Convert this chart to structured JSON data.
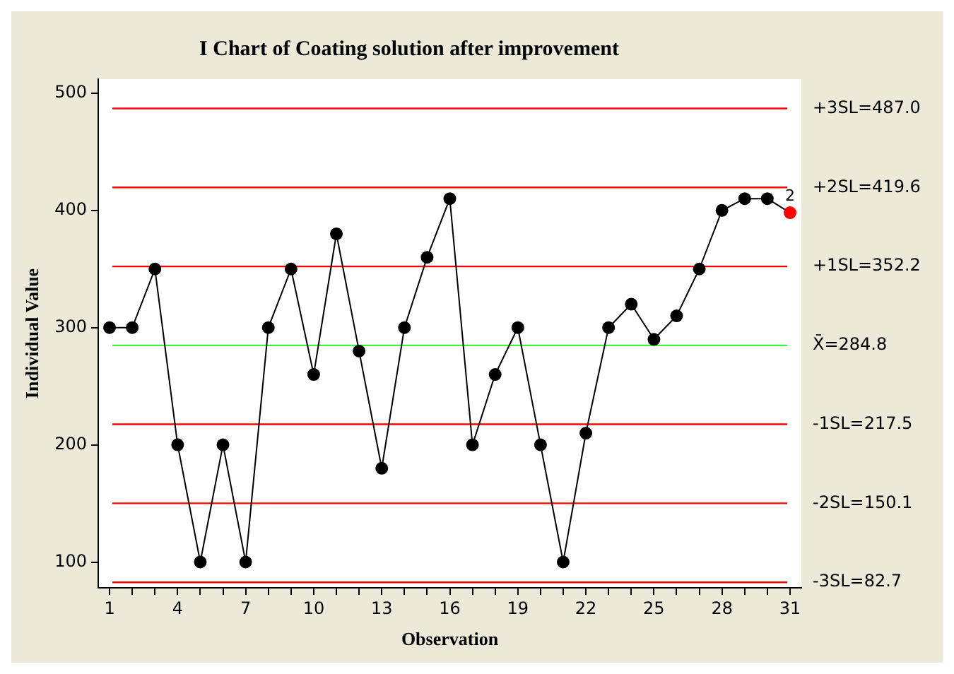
{
  "chart_data": {
    "type": "line",
    "title": "I Chart of Coating solution after improvement",
    "xlabel": "Observation",
    "ylabel": "Individual Value",
    "categories": [
      "1",
      null,
      null,
      "4",
      null,
      null,
      "7",
      null,
      null,
      "10",
      null,
      null,
      "13",
      null,
      null,
      "16",
      null,
      null,
      "19",
      null,
      null,
      "22",
      null,
      null,
      "25",
      null,
      null,
      "28",
      null,
      null,
      "31"
    ],
    "series": [
      {
        "color": "#000000",
        "colors": [
          "#000000",
          "#000000",
          "#000000",
          "#000000",
          "#000000",
          "#000000",
          "#000000",
          "#000000",
          "#000000",
          "#000000",
          "#000000",
          "#000000",
          "#000000",
          "#000000",
          "#000000",
          "#000000",
          "#000000",
          "#000000",
          "#000000",
          "#000000",
          "#000000",
          "#000000",
          "#000000",
          "#000000",
          "#000000",
          "#000000",
          "#000000",
          "#000000",
          "#000000",
          "#000000",
          "#ff0000"
        ],
        "values": [
          300,
          300,
          350,
          200,
          100,
          200,
          100,
          300,
          350,
          260,
          380,
          280,
          180,
          300,
          360,
          410,
          200,
          260,
          300,
          200,
          100,
          210,
          300,
          320,
          290,
          310,
          350,
          400,
          410,
          410,
          398
        ]
      }
    ],
    "ylim": [
      78,
      512
    ],
    "yticks": [
      100,
      200,
      300,
      400,
      500
    ],
    "grid": false,
    "legend": false,
    "marker": "circle",
    "line_style": "solid",
    "ref_lines": [
      {
        "axis": "y",
        "value": 487.0,
        "label": "+3SL=487.0",
        "color": "#ff0000"
      },
      {
        "axis": "y",
        "value": 419.6,
        "label": "+2SL=419.6",
        "color": "#ff0000"
      },
      {
        "axis": "y",
        "value": 352.2,
        "label": "+1SL=352.2",
        "color": "#ff0000"
      },
      {
        "axis": "y",
        "value": 284.8,
        "label": "X̄=284.8",
        "color": "#44ee44"
      },
      {
        "axis": "y",
        "value": 217.5,
        "label": "-1SL=217.5",
        "color": "#ff0000"
      },
      {
        "axis": "y",
        "value": 150.1,
        "label": "-2SL=150.1",
        "color": "#ff0000"
      },
      {
        "axis": "y",
        "value": 82.7,
        "label": "-3SL=82.7",
        "color": "#ff0000"
      }
    ],
    "annotations": [
      {
        "text": "2",
        "x": "31",
        "y": 398
      }
    ]
  }
}
